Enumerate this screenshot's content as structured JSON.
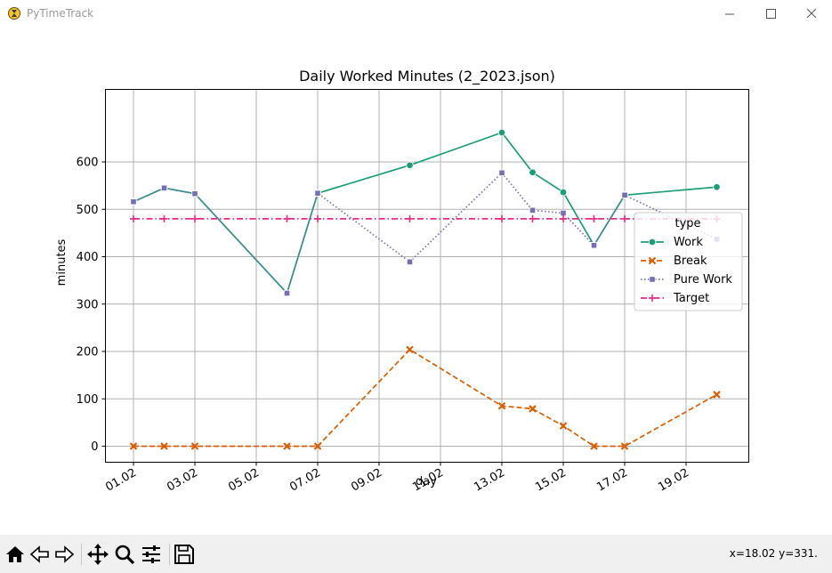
{
  "window": {
    "title": "PyTimeTrack",
    "icon": "app-logo-icon"
  },
  "toolbar": {
    "buttons": [
      "home-icon",
      "back-icon",
      "forward-icon",
      "pan-icon",
      "zoom-icon",
      "configure-subplots-icon",
      "save-icon"
    ],
    "coords": "x=18.02 y=331."
  },
  "colors": {
    "work": "#1b9e77",
    "break": "#d95f02",
    "pure_work": "#7570b3",
    "target": "#e7298a",
    "grid": "#b0b0b0"
  },
  "chart_data": {
    "type": "line",
    "title": "Daily Worked Minutes (2_2023.json)",
    "xlabel": "day",
    "ylabel": "minutes",
    "x_ticks": [
      "01.02",
      "03.02",
      "05.02",
      "07.02",
      "09.02",
      "11.02",
      "13.02",
      "15.02",
      "17.02",
      "19.02"
    ],
    "y_ticks": [
      "0",
      "100",
      "200",
      "300",
      "400",
      "500",
      "600"
    ],
    "ylim": [
      -33,
      695
    ],
    "xlim": [
      "2023-02-01",
      "2023-02-21"
    ],
    "grid": true,
    "legend": {
      "title": "type",
      "placement": "center right"
    },
    "series": [
      {
        "name": "Work",
        "marker": "circle",
        "dash": "solid",
        "color": "#1b9e77",
        "x": [
          "2023-02-01",
          "2023-02-02",
          "2023-02-03",
          "2023-02-06",
          "2023-02-07",
          "2023-02-10",
          "2023-02-13",
          "2023-02-14",
          "2023-02-15",
          "2023-02-16",
          "2023-02-17",
          "2023-02-20"
        ],
        "values": [
          516,
          545,
          533,
          323,
          534,
          593,
          662,
          578,
          536,
          424,
          530,
          547
        ]
      },
      {
        "name": "Break",
        "marker": "x",
        "dash": "dashed",
        "color": "#d95f02",
        "x": [
          "2023-02-01",
          "2023-02-02",
          "2023-02-03",
          "2023-02-06",
          "2023-02-07",
          "2023-02-10",
          "2023-02-13",
          "2023-02-14",
          "2023-02-15",
          "2023-02-16",
          "2023-02-17",
          "2023-02-20"
        ],
        "values": [
          0,
          0,
          0,
          0,
          0,
          204,
          85,
          79,
          43,
          0,
          0,
          109
        ]
      },
      {
        "name": "Pure Work",
        "marker": "square",
        "dash": "dotted",
        "color": "#7570b3",
        "x": [
          "2023-02-01",
          "2023-02-02",
          "2023-02-03",
          "2023-02-06",
          "2023-02-07",
          "2023-02-10",
          "2023-02-13",
          "2023-02-14",
          "2023-02-15",
          "2023-02-16",
          "2023-02-17",
          "2023-02-20"
        ],
        "values": [
          516,
          545,
          533,
          323,
          534,
          389,
          577,
          498,
          492,
          424,
          530,
          437
        ]
      },
      {
        "name": "Target",
        "marker": "plus",
        "dash": "dashdot",
        "color": "#e7298a",
        "x": [
          "2023-02-01",
          "2023-02-02",
          "2023-02-03",
          "2023-02-06",
          "2023-02-07",
          "2023-02-10",
          "2023-02-13",
          "2023-02-14",
          "2023-02-15",
          "2023-02-16",
          "2023-02-17",
          "2023-02-20"
        ],
        "values": [
          480,
          480,
          480,
          480,
          480,
          480,
          480,
          480,
          480,
          480,
          480,
          480
        ]
      }
    ]
  }
}
